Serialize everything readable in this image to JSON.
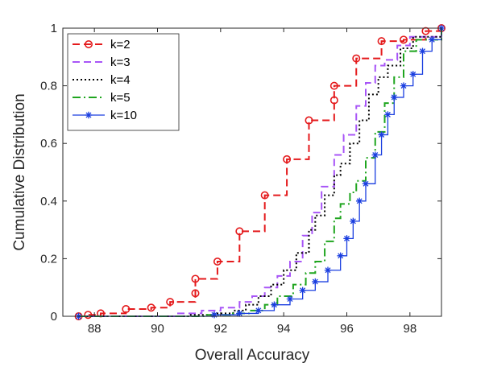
{
  "chart_data": {
    "type": "line",
    "xlabel": "Overall Accuracy",
    "ylabel": "Cumulative Distribution",
    "xlim": [
      87,
      99
    ],
    "ylim": [
      0,
      1
    ],
    "xticks": [
      88,
      90,
      92,
      94,
      96,
      98
    ],
    "yticks": [
      0,
      0.2,
      0.4,
      0.6,
      0.8,
      1
    ],
    "grid": false,
    "legend_position": "top-left",
    "series": [
      {
        "name": "k=2",
        "color": "#e41a1c",
        "style": "dashed",
        "marker": "circle",
        "points": [
          [
            87.5,
            0.0
          ],
          [
            87.8,
            0.005
          ],
          [
            88.2,
            0.01
          ],
          [
            89.0,
            0.025
          ],
          [
            89.8,
            0.03
          ],
          [
            90.4,
            0.05
          ],
          [
            91.2,
            0.08
          ],
          [
            91.2,
            0.13
          ],
          [
            91.9,
            0.19
          ],
          [
            92.6,
            0.295
          ],
          [
            93.4,
            0.42
          ],
          [
            94.1,
            0.545
          ],
          [
            94.8,
            0.68
          ],
          [
            95.6,
            0.75
          ],
          [
            95.6,
            0.8
          ],
          [
            96.3,
            0.895
          ],
          [
            97.1,
            0.955
          ],
          [
            97.8,
            0.96
          ],
          [
            98.5,
            0.99
          ],
          [
            99.0,
            1.0
          ]
        ]
      },
      {
        "name": "k=3",
        "color": "#a855f7",
        "style": "dashed",
        "marker": "none",
        "points": [
          [
            87.5,
            0.0
          ],
          [
            90.6,
            0.01
          ],
          [
            91.4,
            0.02
          ],
          [
            92.0,
            0.03
          ],
          [
            92.6,
            0.05
          ],
          [
            93.0,
            0.07
          ],
          [
            93.4,
            0.1
          ],
          [
            93.8,
            0.14
          ],
          [
            94.2,
            0.19
          ],
          [
            94.6,
            0.28
          ],
          [
            94.9,
            0.36
          ],
          [
            95.2,
            0.45
          ],
          [
            95.6,
            0.56
          ],
          [
            95.9,
            0.63
          ],
          [
            96.3,
            0.73
          ],
          [
            96.6,
            0.81
          ],
          [
            96.9,
            0.87
          ],
          [
            97.2,
            0.89
          ],
          [
            97.6,
            0.94
          ],
          [
            98.0,
            0.97
          ],
          [
            99.0,
            1.0
          ]
        ]
      },
      {
        "name": "k=4",
        "color": "#000000",
        "style": "dotted",
        "marker": "none",
        "points": [
          [
            87.5,
            0.0
          ],
          [
            91.0,
            0.005
          ],
          [
            91.8,
            0.01
          ],
          [
            92.4,
            0.02
          ],
          [
            92.8,
            0.04
          ],
          [
            93.2,
            0.07
          ],
          [
            93.6,
            0.11
          ],
          [
            94.0,
            0.16
          ],
          [
            94.4,
            0.22
          ],
          [
            94.8,
            0.3
          ],
          [
            95.0,
            0.35
          ],
          [
            95.3,
            0.42
          ],
          [
            95.6,
            0.49
          ],
          [
            95.8,
            0.53
          ],
          [
            96.1,
            0.6
          ],
          [
            96.4,
            0.68
          ],
          [
            96.7,
            0.77
          ],
          [
            97.0,
            0.83
          ],
          [
            97.3,
            0.87
          ],
          [
            97.7,
            0.93
          ],
          [
            98.1,
            0.97
          ],
          [
            99.0,
            1.0
          ]
        ]
      },
      {
        "name": "k=5",
        "color": "#1fa51f",
        "style": "dashdot",
        "marker": "none",
        "points": [
          [
            87.5,
            0.0
          ],
          [
            91.5,
            0.005
          ],
          [
            92.3,
            0.01
          ],
          [
            92.9,
            0.02
          ],
          [
            93.4,
            0.04
          ],
          [
            93.8,
            0.07
          ],
          [
            94.3,
            0.11
          ],
          [
            94.7,
            0.15
          ],
          [
            95.0,
            0.19
          ],
          [
            95.3,
            0.26
          ],
          [
            95.6,
            0.34
          ],
          [
            95.8,
            0.39
          ],
          [
            96.1,
            0.43
          ],
          [
            96.3,
            0.47
          ],
          [
            96.6,
            0.55
          ],
          [
            96.9,
            0.64
          ],
          [
            97.2,
            0.74
          ],
          [
            97.5,
            0.83
          ],
          [
            97.8,
            0.92
          ],
          [
            98.2,
            0.96
          ],
          [
            99.0,
            1.0
          ]
        ]
      },
      {
        "name": "k=10",
        "color": "#1a3ee0",
        "style": "solid",
        "marker": "star",
        "points": [
          [
            87.5,
            0.0
          ],
          [
            91.8,
            0.005
          ],
          [
            92.6,
            0.01
          ],
          [
            93.2,
            0.02
          ],
          [
            93.7,
            0.04
          ],
          [
            94.2,
            0.06
          ],
          [
            94.6,
            0.09
          ],
          [
            95.0,
            0.12
          ],
          [
            95.4,
            0.16
          ],
          [
            95.8,
            0.21
          ],
          [
            96.0,
            0.27
          ],
          [
            96.2,
            0.33
          ],
          [
            96.4,
            0.4
          ],
          [
            96.6,
            0.46
          ],
          [
            96.9,
            0.56
          ],
          [
            97.1,
            0.63
          ],
          [
            97.3,
            0.7
          ],
          [
            97.5,
            0.76
          ],
          [
            97.8,
            0.8
          ],
          [
            98.1,
            0.84
          ],
          [
            98.4,
            0.92
          ],
          [
            98.7,
            0.96
          ],
          [
            99.0,
            1.0
          ]
        ]
      }
    ]
  }
}
